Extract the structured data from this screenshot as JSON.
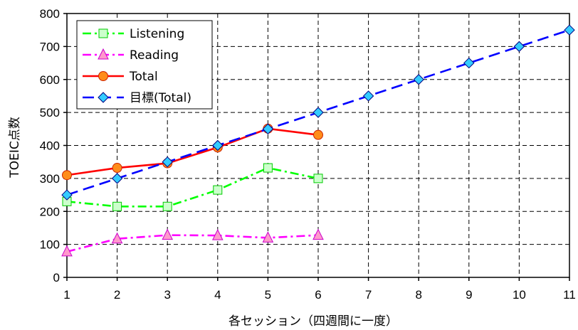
{
  "chart_data": {
    "type": "line",
    "title": "",
    "xlabel": "各セッション（四週間に一度）",
    "ylabel": "TOEIC点数",
    "x": [
      1,
      2,
      3,
      4,
      5,
      6,
      7,
      8,
      9,
      10,
      11
    ],
    "xlim": [
      1,
      11
    ],
    "ylim": [
      0,
      800
    ],
    "yticks": [
      0,
      100,
      200,
      300,
      400,
      500,
      600,
      700,
      800
    ],
    "grid": true,
    "legend_position": "top-left",
    "series": [
      {
        "name": "Listening",
        "x": [
          1,
          2,
          3,
          4,
          5,
          6
        ],
        "values": [
          230,
          215,
          215,
          265,
          332,
          300
        ],
        "color": "#00ff00",
        "dash": "dash-dot",
        "marker": "square"
      },
      {
        "name": "Reading",
        "x": [
          1,
          2,
          3,
          4,
          5,
          6
        ],
        "values": [
          78,
          117,
          128,
          127,
          120,
          128
        ],
        "color": "#ff00ff",
        "dash": "dash-dot",
        "marker": "triangle"
      },
      {
        "name": "Total",
        "x": [
          1,
          2,
          3,
          4,
          5,
          6
        ],
        "values": [
          310,
          332,
          346,
          394,
          451,
          432
        ],
        "color": "#ff0000",
        "dash": "solid",
        "marker": "circle"
      },
      {
        "name": "目標(Total)",
        "x": [
          1,
          2,
          3,
          4,
          5,
          6,
          7,
          8,
          9,
          10,
          11
        ],
        "values": [
          250,
          300,
          350,
          400,
          450,
          500,
          550,
          600,
          650,
          700,
          750
        ],
        "color": "#0000ff",
        "dash": "dashed",
        "marker": "diamond"
      }
    ]
  }
}
